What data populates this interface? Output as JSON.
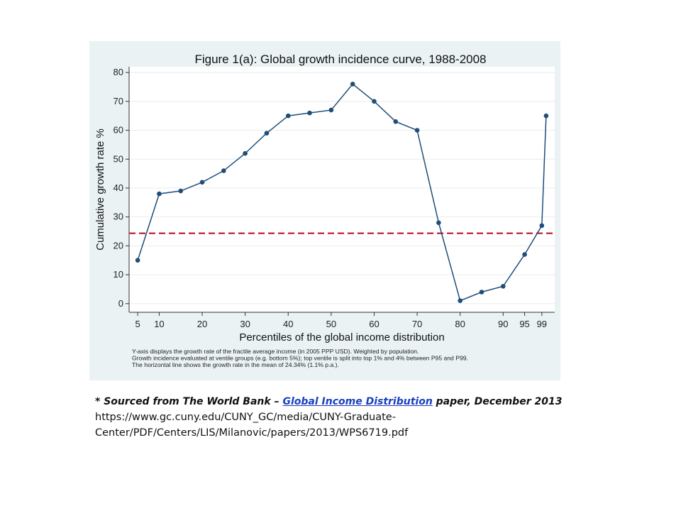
{
  "chart_data": {
    "type": "line",
    "title": "Figure 1(a): Global growth incidence curve, 1988-2008",
    "xlabel": "Percentiles of the global income distribution",
    "ylabel": "Cumulative growth rate %",
    "x": [
      5,
      10,
      15,
      20,
      25,
      30,
      35,
      40,
      45,
      50,
      55,
      60,
      65,
      70,
      75,
      80,
      85,
      90,
      95,
      99,
      100
    ],
    "series": [
      {
        "values": [
          15,
          38,
          39,
          42,
          46,
          52,
          59,
          65,
          66,
          67,
          76,
          70,
          63,
          60,
          28,
          1,
          4,
          6,
          17,
          27,
          65
        ]
      }
    ],
    "reference_line": {
      "y": 24.34
    },
    "xlim": [
      3,
      102
    ],
    "ylim": [
      -3,
      82
    ],
    "xticks": [
      5,
      10,
      20,
      30,
      40,
      50,
      60,
      70,
      80,
      90,
      95,
      99
    ],
    "yticks": [
      0,
      10,
      20,
      30,
      40,
      50,
      60,
      70,
      80
    ],
    "grid": "horizontal",
    "colors": {
      "line": "#1f4e79",
      "reference": "#c0122f",
      "panel": "#eaf2f3",
      "plot": "#ffffff"
    },
    "notes": [
      "Y-axis displays the growth rate of the fractile average income (in 2005 PPP USD). Weighted by population.",
      "Growth incidence evaluated at ventile groups (e.g. bottom 5%); top ventile is split into top 1% and 4% between P95 and P99.",
      "The horizontal line shows the growth rate in the mean of 24.34% (1.1% p.a.)."
    ]
  },
  "caption": {
    "prefix": "* Sourced from The World Bank – ",
    "link_text": "Global Income Distribution",
    "suffix": " paper, December 2013",
    "url_line1": "https://www.gc.cuny.edu/CUNY_GC/media/CUNY-Graduate-",
    "url_line2": "Center/PDF/Centers/LIS/Milanovic/papers/2013/WPS6719.pdf"
  }
}
